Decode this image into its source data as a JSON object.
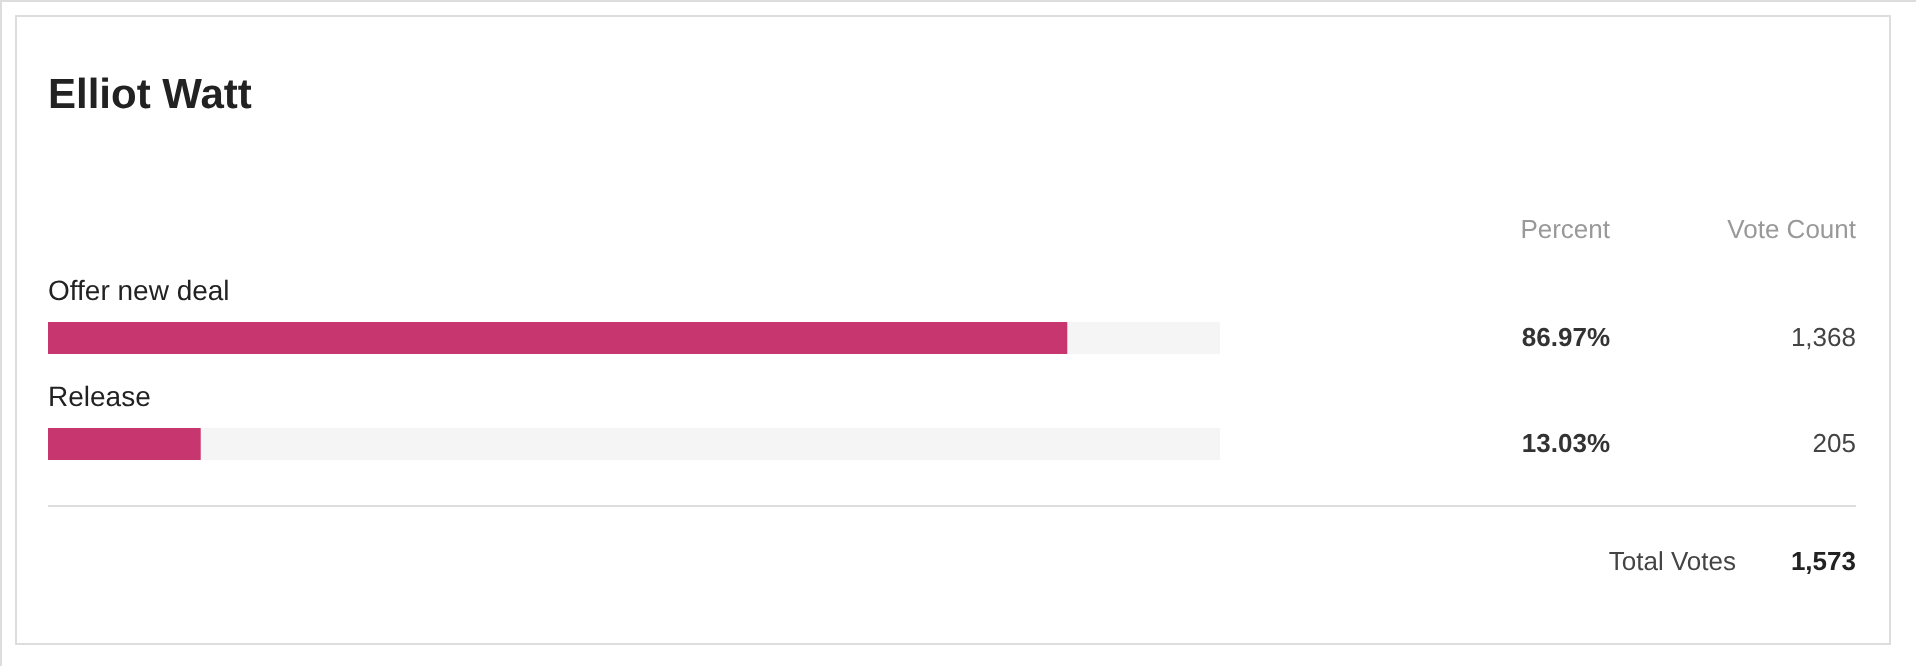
{
  "chart_data": {
    "type": "bar",
    "orientation": "horizontal",
    "title": "Elliot Watt",
    "categories": [
      "Offer new deal",
      "Release"
    ],
    "values": [
      86.97,
      13.03
    ],
    "color": "#c8366f",
    "xlim": [
      0,
      100
    ],
    "value_labels": [
      "86.97%",
      "13.03%"
    ],
    "annotations": [
      "Percent",
      "Vote Count",
      "1,368",
      "205",
      "Total Votes",
      "1,573"
    ]
  }
}
